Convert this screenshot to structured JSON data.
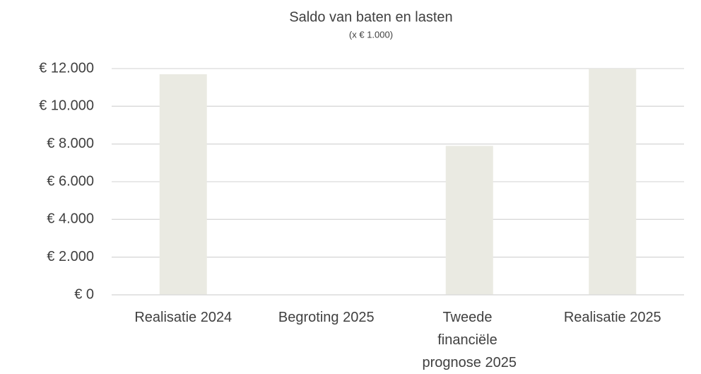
{
  "chart_data": {
    "type": "bar",
    "title": "Saldo van baten en lasten",
    "subtitle": "(x € 1.000)",
    "categories": [
      "Realisatie 2024",
      "Begroting 2025",
      "Tweede financiële prognose 2025",
      "Realisatie 2025"
    ],
    "values": [
      11700,
      0,
      7900,
      12000
    ],
    "color": "#eaeae2",
    "ylim": [
      0,
      12000
    ],
    "yticks": [
      {
        "value": 0,
        "label": "€ 0"
      },
      {
        "value": 2000,
        "label": "€ 2.000"
      },
      {
        "value": 4000,
        "label": "€ 4.000"
      },
      {
        "value": 6000,
        "label": "€ 6.000"
      },
      {
        "value": 8000,
        "label": "€ 8.000"
      },
      {
        "value": 10000,
        "label": "€ 10.000"
      },
      {
        "value": 12000,
        "label": "€ 12.000"
      }
    ],
    "grid": true
  }
}
